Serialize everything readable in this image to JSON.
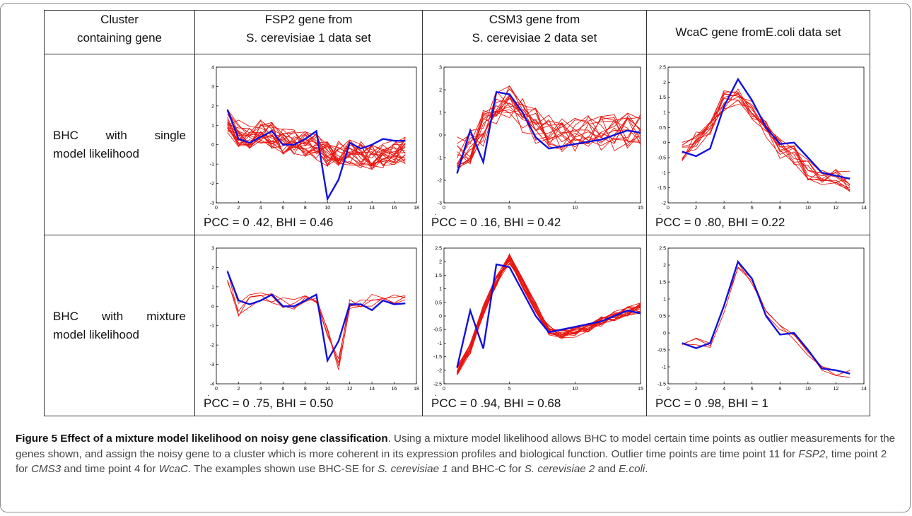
{
  "table": {
    "headers": [
      [
        "Cluster",
        "containing gene"
      ],
      [
        "FSP2  gene from",
        "S. cerevisiae 1 data set"
      ],
      [
        "CSM3  gene from",
        "S. cerevisiae 2 data set"
      ],
      [
        "WcaC  gene fromE.coli  data set"
      ]
    ],
    "rows": [
      {
        "label_line1": [
          "BHC",
          "with",
          "single"
        ],
        "label_line2": "model likelihood",
        "metrics": [
          "CC  = 0 .42, BHI = 0.46",
          "CC  = 0 .16, BHI = 0.42",
          "CC  = 0 .80, BHI = 0.22"
        ]
      },
      {
        "label_line1": [
          "BHC",
          "with",
          "mixture"
        ],
        "label_line2": "model likelihood",
        "metrics": [
          "CC  = 0 .75, BHI = 0.50",
          "CC  = 0 .94, BHI = 0.68",
          "CC  = 0 .98, BHI = 1"
        ]
      }
    ],
    "metric_prefix": "P"
  },
  "caption": {
    "bold": "Figure 5 Effect of a mixture model likelihood on noisy gene classification",
    "t1": ". Using a mixture model likelihood allows BHC to model certain time points as outlier measurements for the genes shown, and assign the noisy gene to a cluster which is more coherent in its expression profiles and biological function. Outlier time points are time point 11 for ",
    "g1": "FSP2",
    "t2": ", time point 2 for ",
    "g2": "CMS3",
    "t3": " and time point 4 for ",
    "g3": "WcaC",
    "t4": ". The examples shown use BHC-SE for ",
    "g4": "S. cerevisiae 1",
    "t5": " and BHC-C for ",
    "g5": "S. cerevisiae 2",
    "t6": " and ",
    "g6": "E.coli",
    "t7": "."
  },
  "colors": {
    "highlight": "#1010e0",
    "cluster": "#e8150f"
  },
  "chart_data": [
    {
      "type": "line",
      "ylim": [
        -3,
        4
      ],
      "xlim": [
        0,
        18
      ],
      "xticks": [
        0,
        2,
        4,
        6,
        8,
        10,
        12,
        14,
        16,
        18
      ],
      "yticks": [
        -3,
        -2,
        -1,
        0,
        1,
        2,
        3,
        4
      ],
      "x": [
        1,
        2,
        3,
        4,
        5,
        6,
        7,
        8,
        9,
        10,
        11,
        12,
        13,
        14,
        15,
        16,
        17
      ],
      "highlight": [
        1.8,
        0.3,
        0.1,
        0.4,
        0.7,
        0.0,
        0.0,
        0.3,
        0.7,
        -2.8,
        -1.8,
        0.1,
        -0.2,
        0.0,
        0.3,
        0.2,
        0.2
      ],
      "cluster_count": 22,
      "cluster_noise": 0.7,
      "cluster_base": [
        1.2,
        0.6,
        0.5,
        0.7,
        0.5,
        0.2,
        0.1,
        0.0,
        -0.1,
        -0.5,
        -0.5,
        -0.4,
        -0.5,
        -0.6,
        -0.5,
        -0.4,
        -0.3
      ]
    },
    {
      "type": "line",
      "ylim": [
        -3,
        3
      ],
      "xlim": [
        0,
        15
      ],
      "xticks": [
        0,
        5,
        10,
        15
      ],
      "yticks": [
        -3,
        -2,
        -1,
        0,
        1,
        2,
        3
      ],
      "x": [
        1,
        2,
        3,
        4,
        5,
        6,
        7,
        8,
        9,
        10,
        11,
        12,
        13,
        14,
        15
      ],
      "highlight": [
        -1.7,
        0.2,
        -1.2,
        1.9,
        1.8,
        1.0,
        -0.1,
        -0.6,
        -0.5,
        -0.4,
        -0.3,
        -0.2,
        0.0,
        0.2,
        0.1
      ],
      "cluster_count": 16,
      "cluster_noise": 0.8,
      "cluster_base": [
        -0.8,
        -0.5,
        0.3,
        1.2,
        1.4,
        0.9,
        0.4,
        0.1,
        0.0,
        0.0,
        0.1,
        0.1,
        0.1,
        0.2,
        0.2
      ]
    },
    {
      "type": "line",
      "ylim": [
        -2,
        2.5
      ],
      "xlim": [
        0,
        14
      ],
      "xticks": [
        0,
        2,
        4,
        6,
        8,
        10,
        12,
        14
      ],
      "yticks": [
        -2,
        -1.5,
        -1,
        -0.5,
        0,
        0.5,
        1,
        1.5,
        2,
        2.5
      ],
      "x": [
        1,
        2,
        3,
        4,
        5,
        6,
        7,
        8,
        9,
        10,
        11,
        12,
        13
      ],
      "highlight": [
        -0.3,
        -0.45,
        -0.2,
        1.2,
        2.1,
        1.4,
        0.5,
        -0.05,
        0.0,
        -0.5,
        -1.0,
        -1.1,
        -1.2
      ],
      "cluster_count": 11,
      "cluster_noise": 0.35,
      "cluster_base": [
        -0.3,
        0.1,
        0.6,
        1.4,
        1.5,
        1.1,
        0.5,
        -0.2,
        -0.4,
        -0.9,
        -1.1,
        -1.2,
        -1.3
      ]
    },
    {
      "type": "line",
      "ylim": [
        -4,
        3
      ],
      "xlim": [
        0,
        18
      ],
      "xticks": [
        0,
        2,
        4,
        6,
        8,
        10,
        12,
        14,
        16,
        18
      ],
      "yticks": [
        -4,
        -3,
        -2,
        -1,
        0,
        1,
        2,
        3
      ],
      "x": [
        1,
        2,
        3,
        4,
        5,
        6,
        7,
        8,
        9,
        10,
        11,
        12,
        13,
        14,
        15,
        16,
        17
      ],
      "highlight": [
        1.8,
        0.3,
        0.1,
        0.3,
        0.6,
        0.0,
        0.0,
        0.3,
        0.6,
        -2.8,
        -1.8,
        0.1,
        0.1,
        -0.2,
        0.3,
        0.1,
        0.15
      ],
      "cluster_count": 4,
      "cluster_noise": 0.35,
      "cluster_base": [
        1.6,
        -0.2,
        0.3,
        0.4,
        0.3,
        0.1,
        0.2,
        0.3,
        0.4,
        -1.3,
        -3.0,
        0.1,
        0.2,
        0.3,
        0.3,
        0.3,
        0.2
      ]
    },
    {
      "type": "line",
      "ylim": [
        -2.5,
        2.5
      ],
      "xlim": [
        0,
        15
      ],
      "xticks": [
        0,
        5,
        10,
        15
      ],
      "yticks": [
        -2.5,
        -2,
        -1.5,
        -1,
        -0.5,
        0,
        0.5,
        1,
        1.5,
        2,
        2.5
      ],
      "x": [
        1,
        2,
        3,
        4,
        5,
        6,
        7,
        8,
        9,
        10,
        11,
        12,
        13,
        14,
        15
      ],
      "highlight": [
        -1.9,
        0.2,
        -1.2,
        1.9,
        1.8,
        0.9,
        0.0,
        -0.6,
        -0.5,
        -0.4,
        -0.3,
        -0.2,
        0.0,
        0.2,
        0.1
      ],
      "cluster_count": 18,
      "cluster_noise": 0.2,
      "cluster_base": [
        -2.0,
        -1.2,
        0.2,
        1.3,
        2.1,
        1.2,
        0.3,
        -0.5,
        -0.7,
        -0.6,
        -0.4,
        -0.2,
        0.0,
        0.2,
        0.3
      ]
    },
    {
      "type": "line",
      "ylim": [
        -1.5,
        2.5
      ],
      "xlim": [
        0,
        14
      ],
      "xticks": [
        0,
        2,
        4,
        6,
        8,
        10,
        12,
        14
      ],
      "yticks": [
        -1.5,
        -1,
        -0.5,
        0,
        0.5,
        1,
        1.5,
        2,
        2.5
      ],
      "x": [
        1,
        2,
        3,
        4,
        5,
        6,
        7,
        8,
        9,
        10,
        11,
        12,
        13
      ],
      "highlight": [
        -0.3,
        -0.45,
        -0.3,
        0.8,
        2.1,
        1.6,
        0.5,
        -0.05,
        0.0,
        -0.5,
        -1.05,
        -1.1,
        -1.2
      ],
      "cluster_count": 3,
      "cluster_noise": 0.12,
      "cluster_base": [
        -0.35,
        -0.25,
        -0.35,
        0.7,
        2.0,
        1.5,
        0.6,
        0.2,
        -0.1,
        -0.6,
        -1.0,
        -1.2,
        -1.2
      ]
    }
  ]
}
